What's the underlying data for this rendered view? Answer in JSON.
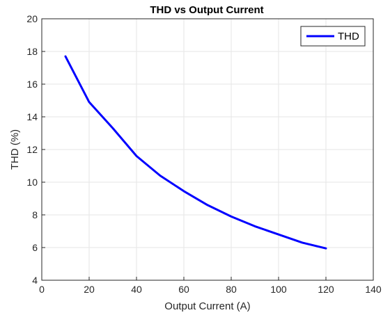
{
  "chart_data": {
    "type": "line",
    "title": "THD vs Output Current",
    "xlabel": "Output Current (A)",
    "ylabel": "THD (%)",
    "xlim": [
      0,
      140
    ],
    "ylim": [
      4,
      20
    ],
    "xticks": [
      0,
      20,
      40,
      60,
      80,
      100,
      120,
      140
    ],
    "yticks": [
      4,
      6,
      8,
      10,
      12,
      14,
      16,
      18,
      20
    ],
    "grid": true,
    "legend_position": "top-right",
    "series": [
      {
        "name": "THD",
        "color": "#0000ff",
        "x": [
          10,
          20,
          30,
          40,
          50,
          60,
          70,
          80,
          90,
          100,
          110,
          120
        ],
        "y": [
          17.7,
          14.9,
          13.3,
          11.6,
          10.4,
          9.45,
          8.6,
          7.9,
          7.3,
          6.8,
          6.3,
          5.95
        ]
      }
    ]
  }
}
